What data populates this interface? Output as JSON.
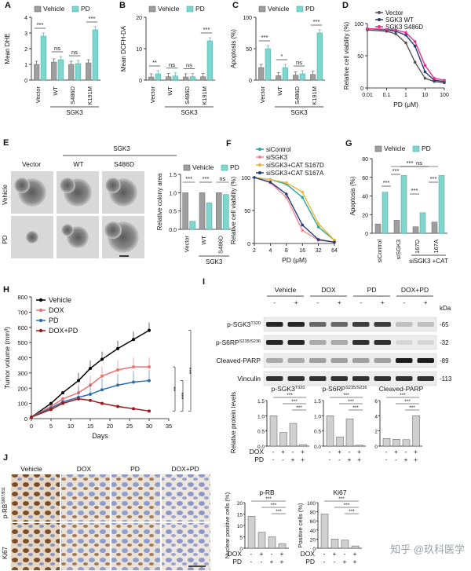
{
  "panels": {
    "A": {
      "letter": "A",
      "ylabel": "Mean DHE",
      "legend": [
        "Vehicle",
        "PD"
      ],
      "groups": [
        "Vector",
        "WT",
        "S486D",
        "K191M"
      ],
      "group_label": "SGK3",
      "sig": [
        "***",
        "ns",
        "ns",
        "***"
      ]
    },
    "B": {
      "letter": "B",
      "ylabel": "Mean DCFH-DA",
      "legend": [
        "Vehicle",
        "PD"
      ],
      "groups": [
        "Vector",
        "WT",
        "S486D",
        "K191M"
      ],
      "group_label": "SGK3",
      "sig": [
        "**",
        "ns",
        "ns",
        "***"
      ]
    },
    "C": {
      "letter": "C",
      "ylabel": "Apoptosis (%)",
      "legend": [
        "Vehicle",
        "PD"
      ],
      "groups": [
        "Vector",
        "WT",
        "S486D",
        "K191M"
      ],
      "group_label": "SGK3",
      "sig": [
        "***",
        "*",
        "ns",
        "***"
      ]
    },
    "D": {
      "letter": "D",
      "ylabel": "Relative cell viability (%)",
      "xlabel": "PD (μM)",
      "legend": [
        "Vector",
        "SGK3 WT",
        "SGK3 S486D"
      ]
    },
    "E": {
      "letter": "E",
      "top_label": "SGK3",
      "cols": [
        "Vector",
        "WT",
        "S486D"
      ],
      "rows": [
        "Vehicle",
        "PD"
      ],
      "ylabel": "Relative colony area",
      "legend": [
        "Vehicle",
        "PD"
      ],
      "groups": [
        "Vector",
        "WT",
        "S486D"
      ],
      "group_label": "SGK3",
      "sig": [
        "***",
        "***",
        "ns"
      ]
    },
    "F": {
      "letter": "F",
      "ylabel": "Relative cell viability (%)",
      "xlabel": "PD (μM)",
      "legend": [
        "siControl",
        "siSGK3",
        "siSGK3+CAT S167D",
        "siSGK3+CAT S167A"
      ]
    },
    "G": {
      "letter": "G",
      "ylabel": "Apoptosis (%)",
      "legend": [
        "Vehicle",
        "PD"
      ],
      "groups": [
        "siControl",
        "siSGK3",
        "167D",
        "167A"
      ],
      "group_label": "siSGK3 +CAT",
      "sig": [
        "***",
        "***",
        "***",
        "ns",
        "***",
        "***"
      ]
    },
    "H": {
      "letter": "H",
      "ylabel": "Tumor volume (mm³)",
      "xlabel": "Days",
      "legend": [
        "Vehicle",
        "DOX",
        "PD",
        "DOX+PD"
      ],
      "sig": [
        "**",
        "***",
        "***"
      ]
    },
    "I": {
      "letter": "I",
      "lanes": [
        "Vehicle",
        "DOX",
        "PD",
        "DOX+PD"
      ],
      "kda": "kDa",
      "bands": [
        {
          "name": "p-SGK3",
          "sup": "T320",
          "mw": "65"
        },
        {
          "name": "p-S6RP",
          "sup": "S235/S236",
          "mw": "32"
        },
        {
          "name": "Cleaved-PARP",
          "sup": "",
          "mw": "89"
        },
        {
          "name": "Vinculin",
          "sup": "",
          "mw": "113"
        }
      ],
      "quant_titles": [
        "p-SGK3",
        "p-S6RP",
        "Cleaved-PARP"
      ],
      "quant_sups": [
        "T320",
        "S235/S236",
        ""
      ],
      "ylabel": "Relative protein levels",
      "row_labels": [
        "DOX",
        "PD"
      ],
      "signs_dox": [
        "-",
        "+",
        "-",
        "+"
      ],
      "signs_pd": [
        "-",
        "-",
        "+",
        "+"
      ]
    },
    "J": {
      "letter": "J",
      "cols": [
        "Vehicle",
        "DOX",
        "PD",
        "DOX+PD"
      ],
      "rows": [
        "p-RB",
        "Ki67"
      ],
      "row_sups": [
        "S807/811",
        ""
      ],
      "quant_titles": [
        "p-RB",
        "Ki67"
      ],
      "ylabels": [
        "Nuclear positive cells (%)",
        "Positive cells (%)"
      ],
      "row_labels": [
        "DOX",
        "PD"
      ]
    }
  },
  "watermark": "知乎 @玖科医学",
  "colors": {
    "vehicle": "#9e9e9e",
    "pd": "#7fd6cc",
    "pd_edge": "#3aa89c",
    "vector": "#555555",
    "wt": "#233a7a",
    "s486d": "#e0338a",
    "sictrl": "#2aa39a",
    "sisgk3": "#f08a9a",
    "s167d": "#e8b83a",
    "s167a": "#1f3a78",
    "h_vehicle": "#000000",
    "h_dox": "#f07070",
    "h_pd": "#2a6fb0",
    "h_doxpd": "#9a1a1a"
  },
  "chart_data": [
    {
      "type": "bar",
      "panel": "A",
      "categories": [
        "Vector",
        "WT",
        "S486D",
        "K191M"
      ],
      "series": [
        {
          "name": "Vehicle",
          "values": [
            1.0,
            1.15,
            1.0,
            1.1
          ]
        },
        {
          "name": "PD",
          "values": [
            2.8,
            1.3,
            1.05,
            3.2
          ]
        }
      ],
      "ylabel": "Mean DHE",
      "ylim": [
        0,
        4
      ]
    },
    {
      "type": "bar",
      "panel": "B",
      "categories": [
        "Vector",
        "WT",
        "S486D",
        "K191M"
      ],
      "series": [
        {
          "name": "Vehicle",
          "values": [
            1.0,
            1.1,
            1.0,
            1.1
          ]
        },
        {
          "name": "PD",
          "values": [
            2.0,
            1.3,
            1.1,
            12.5
          ]
        }
      ],
      "ylabel": "Mean DCFH-DA",
      "ylim": [
        0,
        20
      ]
    },
    {
      "type": "bar",
      "panel": "C",
      "categories": [
        "Vector",
        "WT",
        "S486D",
        "K191M"
      ],
      "series": [
        {
          "name": "Vehicle",
          "values": [
            20,
            7,
            8,
            9
          ]
        },
        {
          "name": "PD",
          "values": [
            50,
            20,
            10,
            75
          ]
        }
      ],
      "ylabel": "Apoptosis (%)",
      "ylim": [
        0,
        100
      ]
    },
    {
      "type": "line",
      "panel": "D",
      "x": [
        0.01,
        0.1,
        0.3,
        1,
        3,
        10,
        30,
        100
      ],
      "series": [
        {
          "name": "Vector",
          "values": [
            90,
            88,
            84,
            70,
            40,
            15,
            10,
            8
          ]
        },
        {
          "name": "SGK3 WT",
          "values": [
            92,
            90,
            88,
            82,
            65,
            25,
            12,
            10
          ]
        },
        {
          "name": "SGK3 S486D",
          "values": [
            92,
            91,
            90,
            86,
            72,
            35,
            15,
            12
          ]
        }
      ],
      "ylabel": "Relative cell viability (%)",
      "xlabel": "PD (μM)",
      "ylim": [
        0,
        100
      ],
      "xscale": "log"
    },
    {
      "type": "bar",
      "panel": "E",
      "categories": [
        "Vector",
        "WT",
        "S486D"
      ],
      "series": [
        {
          "name": "Vehicle",
          "values": [
            1.0,
            1.0,
            1.0
          ]
        },
        {
          "name": "PD",
          "values": [
            0.22,
            0.72,
            0.95
          ]
        }
      ],
      "ylabel": "Relative colony area",
      "ylim": [
        0,
        1.5
      ]
    },
    {
      "type": "line",
      "panel": "F",
      "x": [
        2,
        4,
        8,
        16,
        32,
        64
      ],
      "series": [
        {
          "name": "siControl",
          "values": [
            100,
            97,
            90,
            70,
            25,
            5
          ]
        },
        {
          "name": "siSGK3",
          "values": [
            100,
            92,
            70,
            20,
            5,
            2
          ]
        },
        {
          "name": "siSGK3+CAT S167D",
          "values": [
            100,
            97,
            92,
            78,
            30,
            5
          ]
        },
        {
          "name": "siSGK3+CAT S167A",
          "values": [
            100,
            93,
            75,
            28,
            6,
            2
          ]
        }
      ],
      "ylabel": "Relative cell viability (%)",
      "xlabel": "PD (μM)",
      "ylim": [
        0,
        100
      ],
      "xscale": "log2"
    },
    {
      "type": "bar",
      "panel": "G",
      "categories": [
        "siControl",
        "siSGK3",
        "167D",
        "167A"
      ],
      "series": [
        {
          "name": "Vehicle",
          "values": [
            10,
            14,
            7,
            12
          ]
        },
        {
          "name": "PD",
          "values": [
            44,
            62,
            22,
            62
          ]
        }
      ],
      "ylabel": "Apoptosis (%)",
      "ylim": [
        0,
        80
      ]
    },
    {
      "type": "line",
      "panel": "H",
      "x": [
        0,
        5,
        8,
        12,
        15,
        18,
        22,
        26,
        30
      ],
      "series": [
        {
          "name": "Vehicle",
          "values": [
            10,
            100,
            170,
            250,
            330,
            390,
            460,
            520,
            580
          ]
        },
        {
          "name": "DOX",
          "values": [
            10,
            80,
            130,
            170,
            220,
            280,
            320,
            340,
            340
          ]
        },
        {
          "name": "PD",
          "values": [
            10,
            70,
            110,
            140,
            160,
            190,
            220,
            240,
            250
          ]
        },
        {
          "name": "DOX+PD",
          "values": [
            10,
            60,
            100,
            130,
            120,
            100,
            80,
            65,
            50
          ]
        }
      ],
      "ylabel": "Tumor volume (mm³)",
      "xlabel": "Days",
      "ylim": [
        0,
        800
      ],
      "xlim": [
        0,
        35
      ]
    },
    {
      "type": "bar",
      "panel": "I-pSGK3",
      "categories": [
        "1",
        "2",
        "3",
        "4"
      ],
      "values": [
        1.0,
        0.45,
        0.75,
        0.05
      ],
      "title": "p-SGK3",
      "ylim": [
        0,
        1.5
      ]
    },
    {
      "type": "bar",
      "panel": "I-pS6RP",
      "categories": [
        "1",
        "2",
        "3",
        "4"
      ],
      "values": [
        1.0,
        0.3,
        0.9,
        0.03
      ],
      "title": "p-S6RP",
      "ylim": [
        0,
        1.5
      ]
    },
    {
      "type": "bar",
      "panel": "I-PARP",
      "categories": [
        "1",
        "2",
        "3",
        "4"
      ],
      "values": [
        1.0,
        0.9,
        0.85,
        4.0
      ],
      "title": "Cleaved-PARP",
      "ylim": [
        0,
        6
      ]
    },
    {
      "type": "bar",
      "panel": "J-pRB",
      "categories": [
        "1",
        "2",
        "3",
        "4"
      ],
      "values": [
        14,
        7,
        5,
        2
      ],
      "title": "p-RB",
      "ylim": [
        0,
        20
      ]
    },
    {
      "type": "bar",
      "panel": "J-Ki67",
      "categories": [
        "1",
        "2",
        "3",
        "4"
      ],
      "values": [
        75,
        20,
        18,
        5
      ],
      "title": "Ki67",
      "ylim": [
        0,
        100
      ]
    }
  ]
}
